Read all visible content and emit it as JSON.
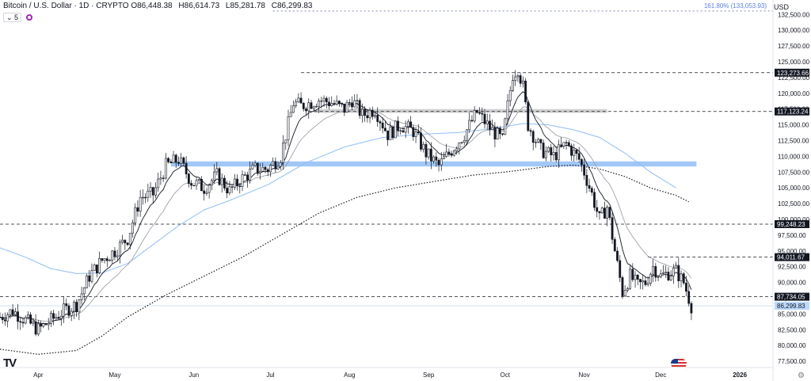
{
  "header": {
    "title": "Bitcoin / U.S. Dollar · 1D · CRYPTO",
    "ohlc": [
      {
        "k": "O",
        "v": "86,448.38"
      },
      {
        "k": "H",
        "v": "86,614.73"
      },
      {
        "k": "L",
        "v": "85,281.78"
      },
      {
        "k": "C",
        "v": "86,299.83"
      }
    ],
    "interval_label": "5",
    "currency": "USD"
  },
  "colors": {
    "price_tag": "#bbd9fb",
    "band": "#90bdf5",
    "ma_blue": "#8fbef5",
    "grey_zone": "#c8c8c8",
    "candle": "#131722"
  },
  "chart_data": {
    "type": "candlestick",
    "y_range": [
      76500,
      133800
    ],
    "y_ticks": [
      "132,500.00",
      "130,000.00",
      "127,500.00",
      "125,000.00",
      "122,500.00",
      "120,000.00",
      "117,500.00",
      "115,000.00",
      "112,500.00",
      "110,000.00",
      "107,500.00",
      "105,000.00",
      "102,500.00",
      "100,000.00",
      "97,500.00",
      "95,000.00",
      "92,500.00",
      "90,000.00",
      "87,500.00",
      "85,000.00",
      "82,500.00",
      "80,000.00",
      "77,500.00"
    ],
    "y_tick_values": [
      132500,
      130000,
      127500,
      125000,
      122500,
      120000,
      117500,
      115000,
      112500,
      110000,
      107500,
      105000,
      102500,
      100000,
      97500,
      95000,
      92500,
      90000,
      87500,
      85000,
      82500,
      80000,
      77500
    ],
    "x_labels": [
      {
        "label": "Apr",
        "day": 0
      },
      {
        "label": "May",
        "day": 30
      },
      {
        "label": "Jun",
        "day": 61
      },
      {
        "label": "Jul",
        "day": 91
      },
      {
        "label": "Aug",
        "day": 122
      },
      {
        "label": "Sep",
        "day": 153
      },
      {
        "label": "Oct",
        "day": 183
      },
      {
        "label": "Nov",
        "day": 214
      },
      {
        "label": "Dec",
        "day": 244
      },
      {
        "label": "2026",
        "day": 275
      }
    ],
    "x_days_range": [
      -15,
      288
    ],
    "key_levels": [
      {
        "name": "level-123273",
        "value": 123273.66,
        "label": "123,273.66",
        "from_day": 103
      },
      {
        "name": "level-117123",
        "value": 117123.24,
        "label": "117,123.24",
        "from_day": 106
      },
      {
        "name": "level-99248",
        "value": 99248.23,
        "label": "99,248.23",
        "from_day": -15
      },
      {
        "name": "level-94011",
        "value": 94011.67,
        "label": "94,011.67",
        "from_day": 239
      },
      {
        "name": "level-87734",
        "value": 87734.05,
        "label": "87,734.05",
        "from_day": -15
      }
    ],
    "current_price": {
      "value": 86299.83,
      "label": "86,299.83"
    },
    "fib_level": {
      "value": 133053.93,
      "label": "161.80% (133,053.93)",
      "from_day": 92
    },
    "zones": [
      {
        "name": "support-band",
        "low": 108400,
        "high": 109200,
        "from_day": 52,
        "to_day": 258
      },
      {
        "name": "resistance-zone",
        "low": 116900,
        "high": 117500,
        "from_day": 108,
        "to_day": 223
      }
    ],
    "ma_long": [
      [
        -15,
        79400
      ],
      [
        0,
        78600
      ],
      [
        15,
        79200
      ],
      [
        25,
        81500
      ],
      [
        35,
        84500
      ],
      [
        50,
        88000
      ],
      [
        65,
        91000
      ],
      [
        80,
        94000
      ],
      [
        95,
        97500
      ],
      [
        110,
        101000
      ],
      [
        125,
        103500
      ],
      [
        140,
        105000
      ],
      [
        155,
        106000
      ],
      [
        170,
        107000
      ],
      [
        185,
        107600
      ],
      [
        200,
        108400
      ],
      [
        210,
        108600
      ],
      [
        220,
        108000
      ],
      [
        230,
        106800
      ],
      [
        240,
        105000
      ],
      [
        250,
        103800
      ],
      [
        255,
        102800
      ]
    ],
    "ma_mid": [
      [
        -15,
        95500
      ],
      [
        -5,
        94000
      ],
      [
        5,
        92200
      ],
      [
        15,
        91400
      ],
      [
        25,
        91500
      ],
      [
        35,
        93000
      ],
      [
        45,
        96000
      ],
      [
        55,
        99000
      ],
      [
        65,
        101500
      ],
      [
        75,
        103000
      ],
      [
        90,
        105500
      ],
      [
        105,
        109000
      ],
      [
        120,
        111500
      ],
      [
        135,
        113000
      ],
      [
        150,
        113500
      ],
      [
        165,
        113800
      ],
      [
        180,
        114500
      ],
      [
        190,
        115200
      ],
      [
        200,
        115000
      ],
      [
        210,
        114200
      ],
      [
        220,
        113000
      ],
      [
        230,
        110500
      ],
      [
        240,
        107500
      ],
      [
        250,
        105000
      ]
    ],
    "candles_path_x_days": [
      -15,
      -10,
      -5,
      0,
      5,
      10,
      15,
      20,
      25,
      30,
      35,
      40,
      45,
      50,
      55,
      60,
      65,
      70,
      75,
      80,
      85,
      90,
      95,
      100,
      103,
      110,
      115,
      120,
      123,
      127,
      132,
      137,
      142,
      147,
      152,
      157,
      162,
      167,
      172,
      177,
      182,
      184,
      186,
      188,
      190,
      192,
      197,
      202,
      207,
      212,
      214,
      217,
      220,
      223,
      226,
      229,
      232,
      235,
      238,
      241,
      244,
      247,
      250,
      253,
      256
    ],
    "candles_path_y": [
      84500,
      85500,
      84000,
      82500,
      84000,
      85500,
      86500,
      91000,
      93500,
      95000,
      97000,
      103500,
      104000,
      108500,
      109500,
      106000,
      105000,
      107000,
      104500,
      106500,
      108000,
      108000,
      110000,
      118500,
      118000,
      119000,
      118500,
      117500,
      119000,
      116500,
      117500,
      113500,
      115000,
      114000,
      110500,
      108500,
      111000,
      113500,
      117000,
      114500,
      112500,
      118000,
      123000,
      124000,
      121000,
      115000,
      111000,
      110000,
      112000,
      109500,
      107500,
      104000,
      100000,
      102000,
      95000,
      88500,
      91000,
      89500,
      90000,
      92500,
      91000,
      91500,
      91800,
      90000,
      86300
    ]
  }
}
